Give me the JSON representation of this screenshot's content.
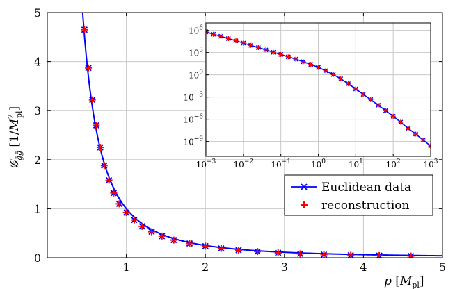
{
  "chart_data": [
    {
      "type": "line",
      "xlabel": "p [M_pl]",
      "ylabel": "G_ḡḡ [1/M_pl^2]",
      "xlim": [
        0,
        5
      ],
      "ylim": [
        0,
        5
      ],
      "xticks": [
        "1",
        "2",
        "3",
        "4",
        "5"
      ],
      "yticks": [
        "0",
        "1",
        "2",
        "3",
        "4",
        "5"
      ],
      "grid": true,
      "legend_position": "bottom-right",
      "series": [
        {
          "name": "Euclidean data",
          "color": "#0000ff",
          "marker": "x",
          "x": [
            0.47,
            0.52,
            0.57,
            0.62,
            0.67,
            0.72,
            0.78,
            0.84,
            0.91,
            1.0,
            1.1,
            1.2,
            1.32,
            1.45,
            1.6,
            1.8,
            2.0,
            2.2,
            2.42,
            2.66,
            2.92,
            3.2,
            3.5,
            3.84,
            4.2,
            4.6
          ],
          "y": [
            4.65,
            3.87,
            3.22,
            2.7,
            2.25,
            1.88,
            1.58,
            1.32,
            1.1,
            0.92,
            0.77,
            0.64,
            0.53,
            0.44,
            0.36,
            0.29,
            0.235,
            0.19,
            0.155,
            0.125,
            0.1,
            0.08,
            0.064,
            0.052,
            0.042,
            0.033
          ]
        },
        {
          "name": "reconstruction",
          "color": "#ff0000",
          "marker": "+",
          "x": [
            0.47,
            0.52,
            0.57,
            0.62,
            0.67,
            0.72,
            0.78,
            0.84,
            0.91,
            1.0,
            1.1,
            1.2,
            1.32,
            1.45,
            1.6,
            1.8,
            2.0,
            2.2,
            2.42,
            2.66,
            2.92,
            3.2,
            3.5,
            3.84,
            4.2,
            4.6
          ],
          "y": [
            4.65,
            3.87,
            3.22,
            2.7,
            2.25,
            1.88,
            1.58,
            1.32,
            1.1,
            0.92,
            0.77,
            0.64,
            0.53,
            0.44,
            0.36,
            0.29,
            0.235,
            0.19,
            0.155,
            0.125,
            0.1,
            0.08,
            0.064,
            0.052,
            0.042,
            0.033
          ]
        }
      ]
    },
    {
      "type": "line",
      "scale": "log-log",
      "xlim": [
        0.001,
        1000
      ],
      "ylim": [
        1e-11,
        10000000.0
      ],
      "x_tick_exponents": [
        -3,
        -2,
        -1,
        0,
        1,
        2,
        3
      ],
      "y_tick_exponents": [
        -9,
        -6,
        -3,
        0,
        3,
        6
      ],
      "grid": true,
      "series": [
        {
          "name": "Euclidean data",
          "color": "#0000ff",
          "marker": "x",
          "x": [
            0.001,
            0.00158,
            0.00251,
            0.00398,
            0.00631,
            0.01,
            0.0158,
            0.0251,
            0.0398,
            0.0631,
            0.1,
            0.158,
            0.251,
            0.398,
            0.631,
            1.0,
            1.58,
            2.51,
            3.98,
            6.31,
            10,
            15.8,
            25.1,
            39.8,
            63.1,
            100,
            158,
            251,
            398,
            631,
            1000
          ],
          "y": [
            630000,
            300000,
            160000,
            78000,
            40000,
            19000,
            9500,
            4700,
            2300,
            1100,
            560,
            260,
            130,
            58,
            25,
            10,
            3.5,
            1.1,
            0.28,
            0.063,
            0.0125,
            0.0024,
            0.00045,
            8e-05,
            1.5e-05,
            2.5e-06,
            4e-07,
            6e-08,
            1e-08,
            1.6e-09,
            2.5e-10
          ]
        },
        {
          "name": "reconstruction",
          "color": "#ff0000",
          "marker": "+",
          "x": [
            0.001,
            0.00158,
            0.00251,
            0.00398,
            0.00631,
            0.01,
            0.0158,
            0.0251,
            0.0398,
            0.0631,
            0.1,
            0.158,
            0.251,
            0.398,
            0.631,
            1.0,
            1.58,
            2.51,
            3.98,
            6.31,
            10,
            15.8,
            25.1,
            39.8,
            63.1,
            100,
            158,
            251,
            398,
            631,
            1000
          ],
          "y": [
            630000,
            300000,
            160000,
            78000,
            40000,
            19000,
            9500,
            4700,
            2300,
            1100,
            560,
            260,
            130,
            58,
            25,
            10,
            3.5,
            1.1,
            0.28,
            0.063,
            0.0125,
            0.0024,
            0.00045,
            8e-05,
            1.5e-05,
            2.5e-06,
            4e-07,
            6e-08,
            1e-08,
            1.6e-09,
            2.5e-10
          ]
        }
      ]
    }
  ]
}
